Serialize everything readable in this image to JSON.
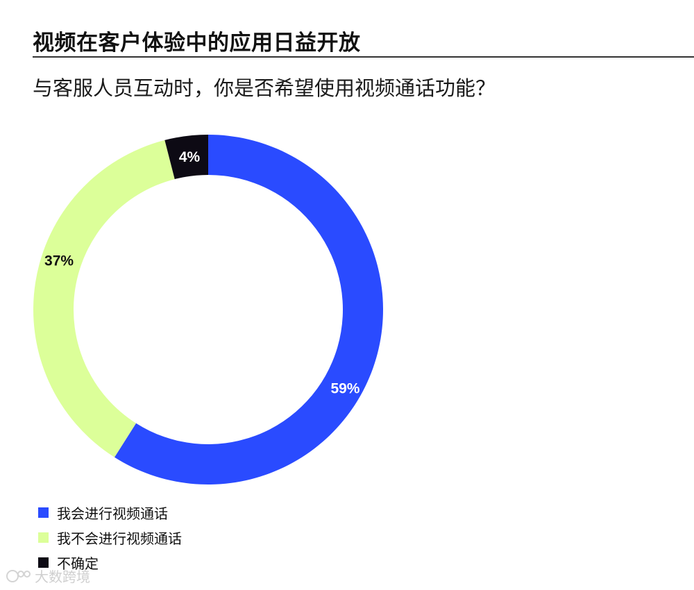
{
  "header": {
    "title": "视频在客户体验中的应用日益开放",
    "subtitle": "与客服人员互动时，你是否希望使用视频通话功能？"
  },
  "chart_data": {
    "type": "pie",
    "donut": true,
    "categories": [
      "我会进行视频通话",
      "我不会进行视频通话",
      "不确定"
    ],
    "values": [
      59,
      37,
      4
    ],
    "data_labels": [
      "59%",
      "37%",
      "4%"
    ],
    "colors": [
      "#2a4bff",
      "#dcff99",
      "#0d0a14"
    ],
    "label_colors": [
      "#ffffff",
      "#111111",
      "#ffffff"
    ],
    "legend_position": "bottom-left"
  },
  "legend": {
    "items": [
      {
        "label": "我会进行视频通话",
        "color": "#2a4bff"
      },
      {
        "label": "我不会进行视频通话",
        "color": "#dcff99"
      },
      {
        "label": "不确定",
        "color": "#0d0a14"
      }
    ]
  },
  "watermark": {
    "text": "大数跨境"
  }
}
